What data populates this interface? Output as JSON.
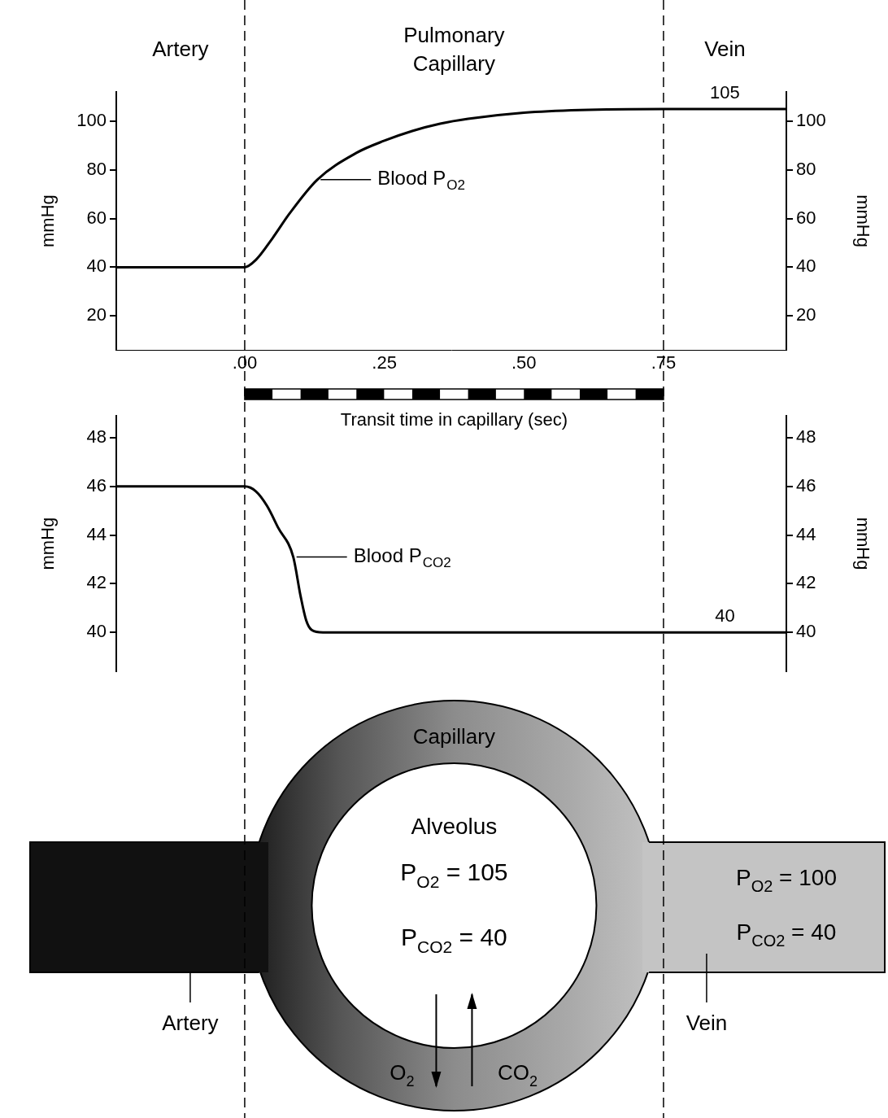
{
  "regions": [
    "Artery",
    "Pulmonary Capillary",
    "Vein"
  ],
  "boundaries": [
    0,
    0.75
  ],
  "chart_data": [
    {
      "type": "line",
      "x_title": "Transit time in capillary (sec)",
      "y_title": "mmHg",
      "y2_title": "mmHg",
      "xlim": [
        -0.23,
        0.97
      ],
      "xticks": [
        {
          "value": 0,
          "label": ".00"
        },
        {
          "value": 0.25,
          "label": ".25"
        },
        {
          "value": 0.5,
          "label": ".50"
        },
        {
          "value": 0.75,
          "label": ".75"
        }
      ],
      "ylim": [
        6,
        112
      ],
      "yticks": [
        20,
        40,
        60,
        80,
        100
      ],
      "y2lim": [
        6,
        112
      ],
      "y2ticks": [
        20,
        40,
        60,
        80,
        100
      ],
      "grid": false,
      "x": [
        -0.23,
        0,
        0.02,
        0.05,
        0.08,
        0.13,
        0.2,
        0.25,
        0.3,
        0.35,
        0.4,
        0.5,
        0.6,
        0.75,
        0.97
      ],
      "series": [
        {
          "color": "#000000",
          "values": [
            40,
            40,
            43,
            52,
            62,
            76,
            87,
            92,
            96,
            99,
            101,
            103.5,
            104.6,
            105,
            105
          ],
          "label": {
            "text": "Blood P",
            "sub": "O2",
            "x": 0.13,
            "y": 76
          }
        }
      ],
      "annotations": [
        {
          "text": "105",
          "x": 0.86,
          "y": 105
        }
      ]
    },
    {
      "type": "line",
      "y_title": "mmHg",
      "y2_title": "mmHg",
      "tick_labels": "y",
      "xlim": [
        -0.23,
        0.97
      ],
      "ylim": [
        38.4,
        48.9
      ],
      "yticks": [
        40,
        42,
        44,
        46,
        48
      ],
      "y2lim": [
        38.4,
        48.9
      ],
      "y2ticks": [
        40,
        42,
        44,
        46,
        48
      ],
      "grid": false,
      "x": [
        -0.23,
        0,
        0.02,
        0.04,
        0.06,
        0.087,
        0.1,
        0.11,
        0.12,
        0.14,
        0.97
      ],
      "series": [
        {
          "color": "#000000",
          "values": [
            46,
            46,
            45.8,
            45.2,
            44.3,
            43.1,
            41.5,
            40.5,
            40.1,
            40,
            40
          ],
          "label": {
            "text": "Blood P",
            "sub": "CO2",
            "x": 0.087,
            "y": 43.1
          }
        }
      ],
      "annotations": [
        {
          "text": "40",
          "x": 0.86,
          "y": 40
        }
      ]
    }
  ],
  "diagram": {
    "capillary": "Capillary",
    "alveolus": "Alveolus",
    "alveolus_values": [
      {
        "text": "P",
        "sub": "O2",
        "after": " = 105"
      },
      {
        "text": "P",
        "sub": "CO2",
        "after": " = 40"
      }
    ],
    "vein_values": [
      {
        "text": "P",
        "sub": "O2",
        "after": " = 100"
      },
      {
        "text": "P",
        "sub": "CO2",
        "after": " = 40"
      }
    ],
    "artery": "Artery",
    "vein": "Vein",
    "gas_flow": [
      {
        "text": "O",
        "sub": "2",
        "direction": "down"
      },
      {
        "text": "CO",
        "sub": "2",
        "direction": "up"
      }
    ]
  }
}
